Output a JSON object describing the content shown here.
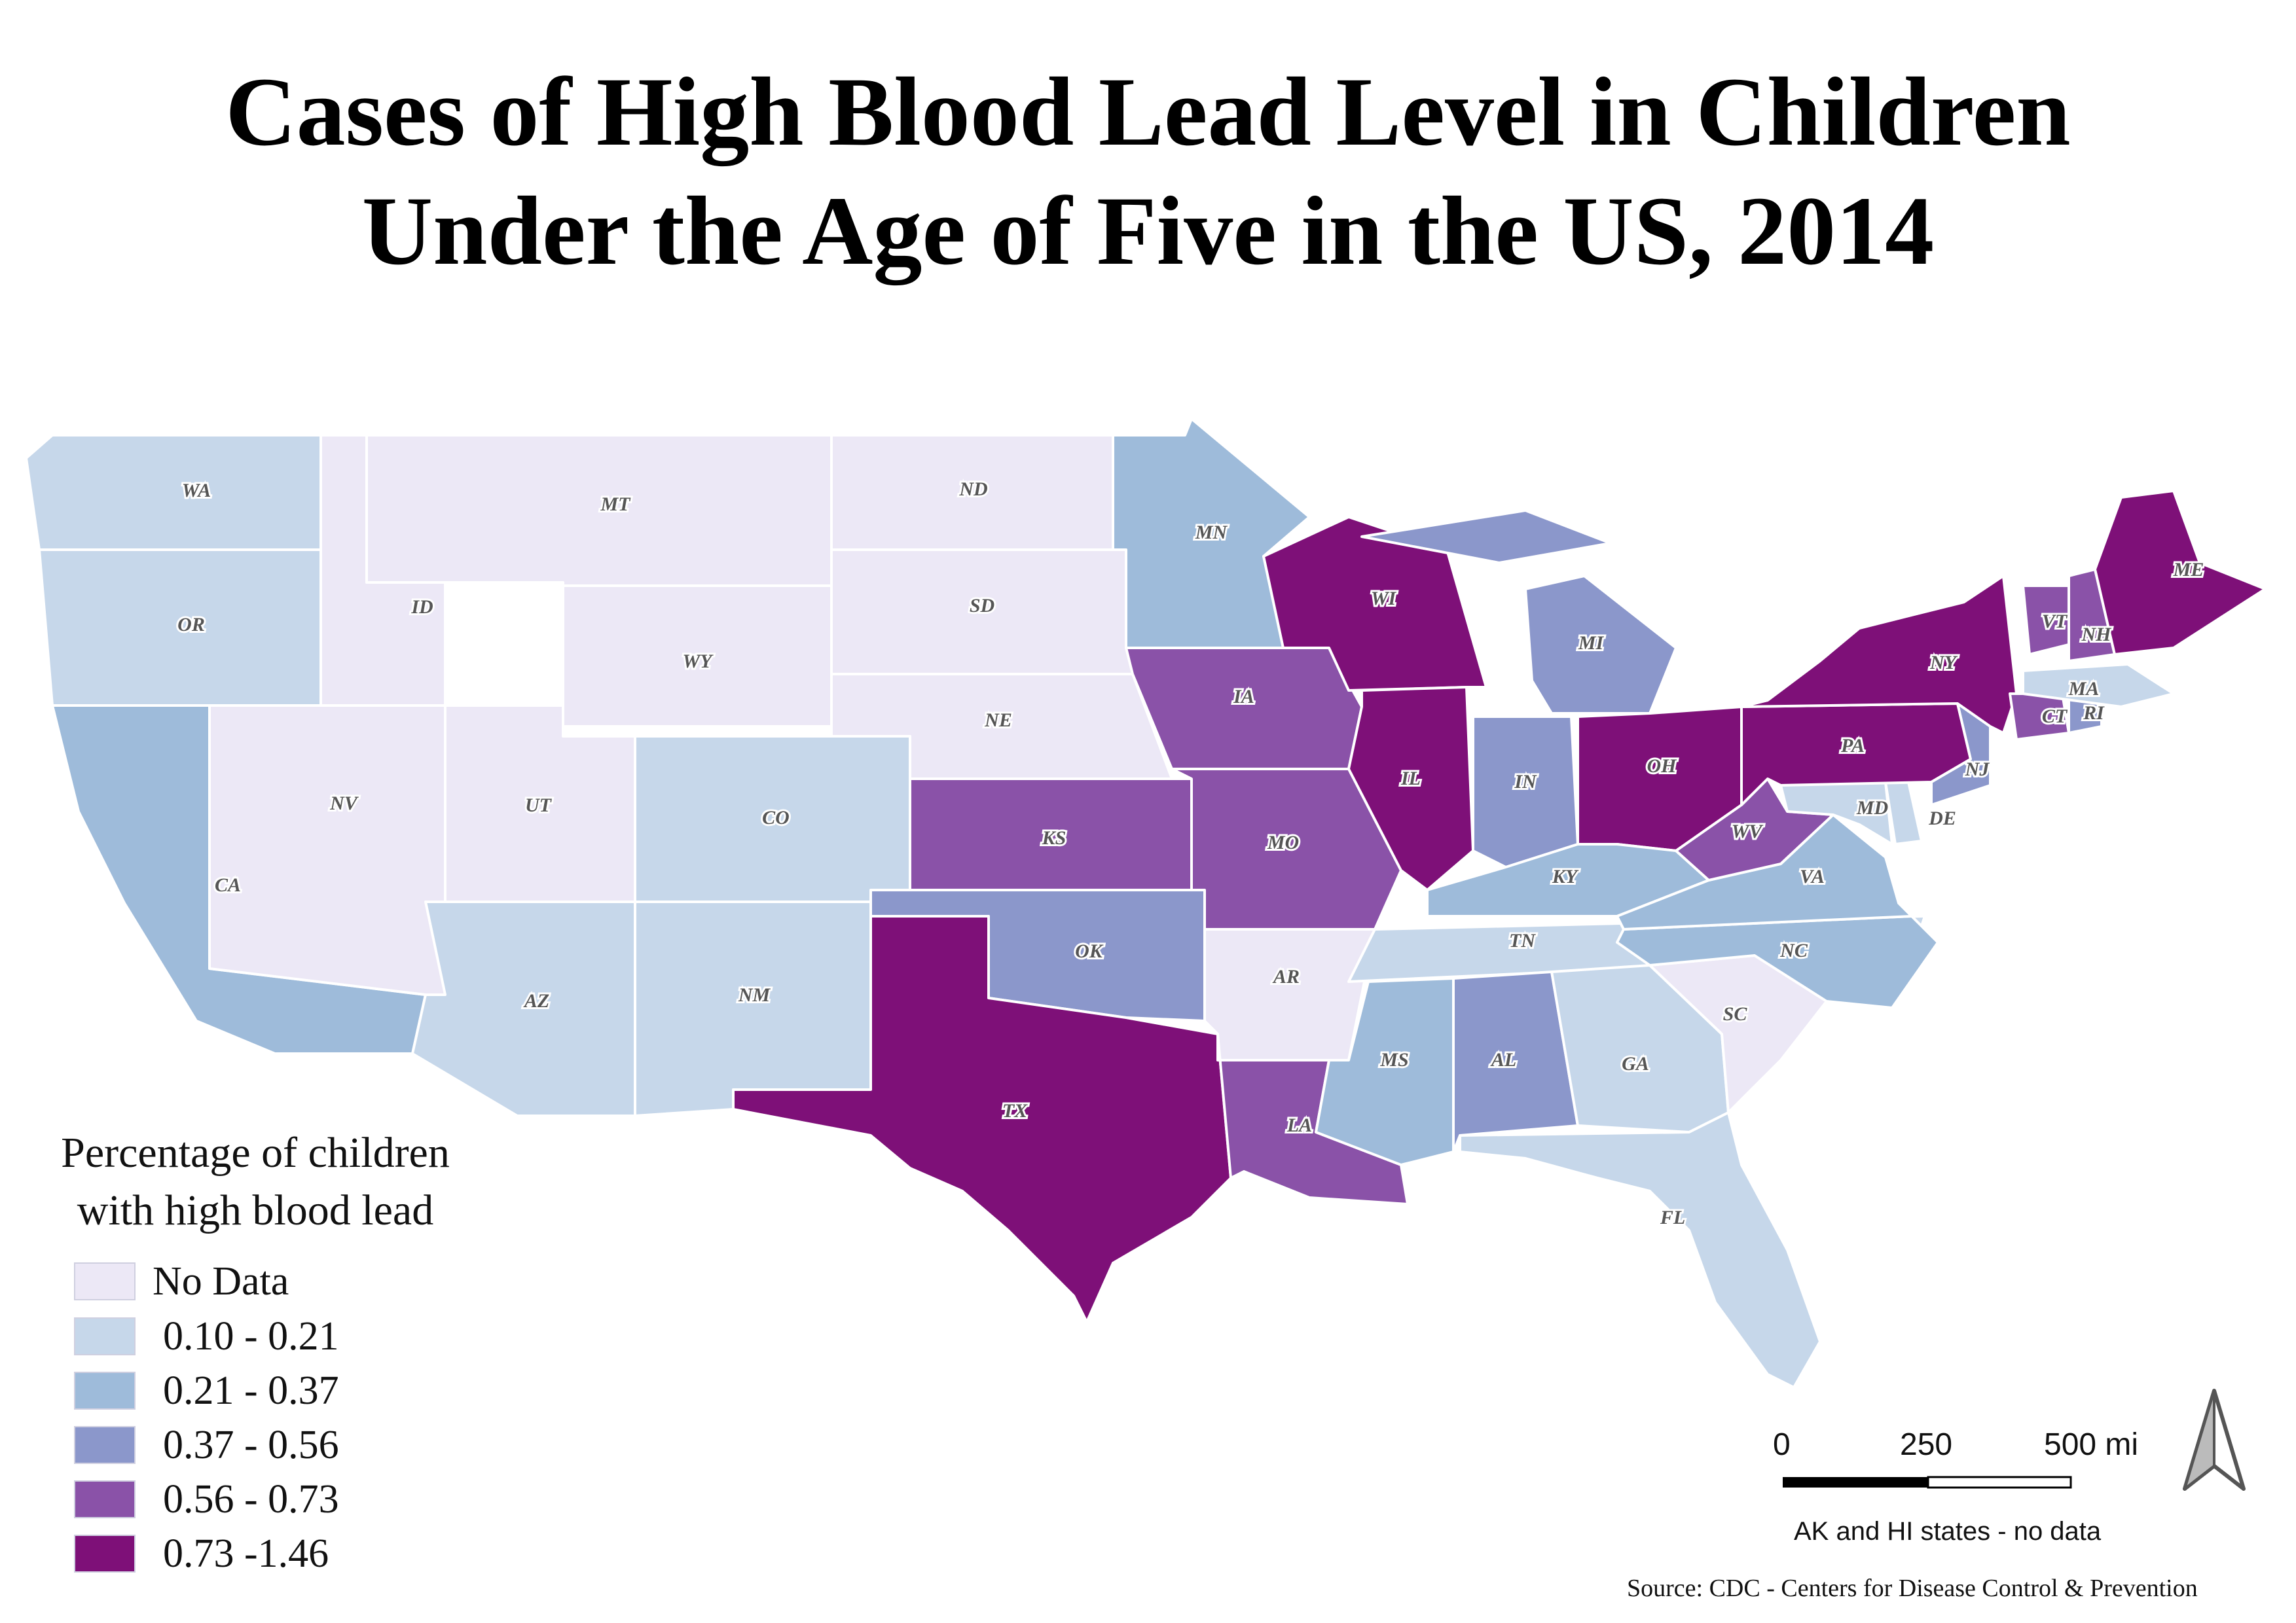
{
  "title_line1": "Cases of High Blood Lead Level in Children",
  "title_line2": "Under the Age of Five in the US, 2014",
  "legend": {
    "title_line1": "Percentage of children",
    "title_line2": "with high blood lead",
    "classes": [
      {
        "label": "No Data",
        "color": "#ece8f6"
      },
      {
        "label": "0.10 - 0.21",
        "color": "#c6d7ea"
      },
      {
        "label": "0.21 - 0.37",
        "color": "#9ebbda"
      },
      {
        "label": "0.37 - 0.56",
        "color": "#8b97cb"
      },
      {
        "label": "0.56 - 0.73",
        "color": "#8a52a8"
      },
      {
        "label": "0.73 -1.46",
        "color": "#7e1078"
      }
    ]
  },
  "states": [
    {
      "abbr": "WA",
      "class": 1
    },
    {
      "abbr": "OR",
      "class": 1
    },
    {
      "abbr": "CA",
      "class": 2
    },
    {
      "abbr": "ID",
      "class": 0
    },
    {
      "abbr": "NV",
      "class": 0
    },
    {
      "abbr": "MT",
      "class": 0
    },
    {
      "abbr": "WY",
      "class": 0
    },
    {
      "abbr": "UT",
      "class": 0
    },
    {
      "abbr": "AZ",
      "class": 1
    },
    {
      "abbr": "CO",
      "class": 1
    },
    {
      "abbr": "NM",
      "class": 1
    },
    {
      "abbr": "ND",
      "class": 0
    },
    {
      "abbr": "SD",
      "class": 0
    },
    {
      "abbr": "NE",
      "class": 0
    },
    {
      "abbr": "KS",
      "class": 4
    },
    {
      "abbr": "OK",
      "class": 3
    },
    {
      "abbr": "TX",
      "class": 5
    },
    {
      "abbr": "MN",
      "class": 2
    },
    {
      "abbr": "IA",
      "class": 4
    },
    {
      "abbr": "MO",
      "class": 4
    },
    {
      "abbr": "AR",
      "class": 0
    },
    {
      "abbr": "LA",
      "class": 4
    },
    {
      "abbr": "WI",
      "class": 5
    },
    {
      "abbr": "IL",
      "class": 5
    },
    {
      "abbr": "MI",
      "class": 3
    },
    {
      "abbr": "IN",
      "class": 3
    },
    {
      "abbr": "OH",
      "class": 5
    },
    {
      "abbr": "KY",
      "class": 2
    },
    {
      "abbr": "TN",
      "class": 1
    },
    {
      "abbr": "MS",
      "class": 2
    },
    {
      "abbr": "AL",
      "class": 3
    },
    {
      "abbr": "GA",
      "class": 1
    },
    {
      "abbr": "FL",
      "class": 1
    },
    {
      "abbr": "SC",
      "class": 0
    },
    {
      "abbr": "NC",
      "class": 2
    },
    {
      "abbr": "VA",
      "class": 2
    },
    {
      "abbr": "WV",
      "class": 4
    },
    {
      "abbr": "MD",
      "class": 1
    },
    {
      "abbr": "DE",
      "class": 1
    },
    {
      "abbr": "PA",
      "class": 5
    },
    {
      "abbr": "NJ",
      "class": 3
    },
    {
      "abbr": "NY",
      "class": 5
    },
    {
      "abbr": "CT",
      "class": 4
    },
    {
      "abbr": "RI",
      "class": 3
    },
    {
      "abbr": "MA",
      "class": 1
    },
    {
      "abbr": "VT",
      "class": 4
    },
    {
      "abbr": "NH",
      "class": 4
    },
    {
      "abbr": "ME",
      "class": 5
    }
  ],
  "scale_bar": {
    "tick_0": "0",
    "tick_mid": "250",
    "tick_end": "500 mi"
  },
  "north_arrow_icon": "north-arrow-icon",
  "note": "AK and HI states - no data",
  "source": "Source: CDC - Centers for Disease Control & Prevention"
}
